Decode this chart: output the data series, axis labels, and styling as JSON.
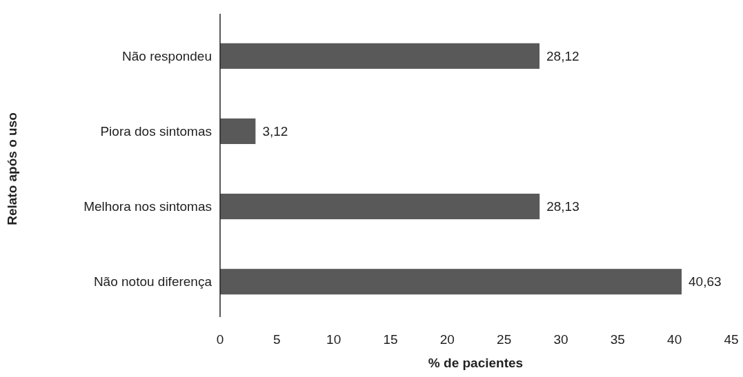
{
  "chart_data": {
    "type": "bar",
    "orientation": "horizontal",
    "xlabel": "% de pacientes",
    "ylabel": "Relato após o uso",
    "categories": [
      "Não respondeu",
      "Piora dos sintomas",
      "Melhora nos sintomas",
      "Não notou diferença"
    ],
    "values": [
      28.12,
      3.12,
      28.13,
      40.63
    ],
    "value_labels": [
      "28,12",
      "3,12",
      "28,13",
      "40,63"
    ],
    "color": "#595959",
    "xlim": [
      0,
      45
    ],
    "xticks": [
      0,
      5,
      10,
      15,
      20,
      25,
      30,
      35,
      40,
      45
    ],
    "grid": false
  }
}
